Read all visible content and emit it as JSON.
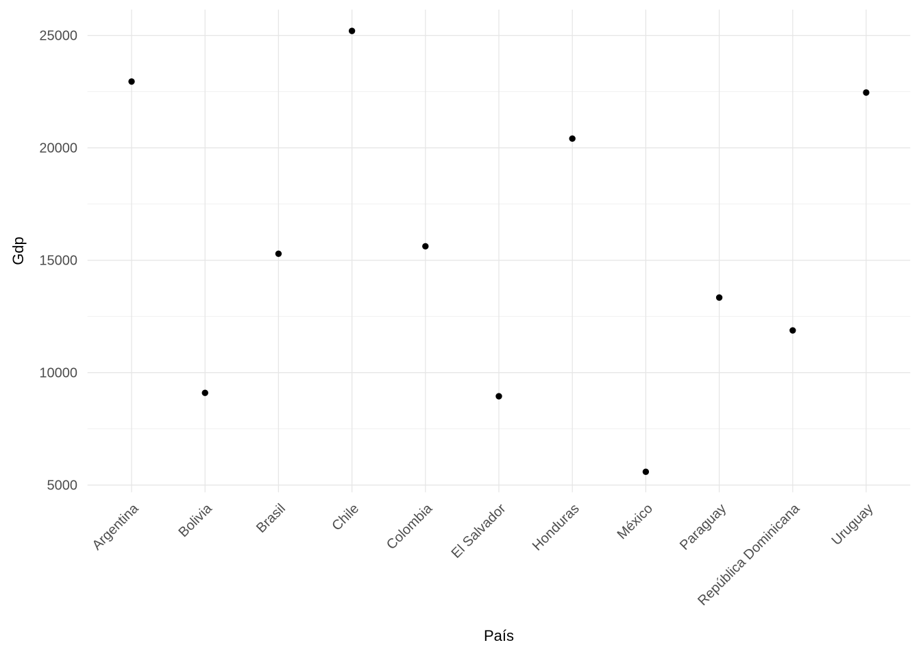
{
  "chart_data": {
    "type": "scatter",
    "title": "",
    "xlabel": "País",
    "ylabel": "Gdp",
    "categories": [
      "Argentina",
      "Bolivia",
      "Brasil",
      "Chile",
      "Colombia",
      "El Salvador",
      "Honduras",
      "México",
      "Paraguay",
      "República Dominicana",
      "Uruguay"
    ],
    "values": [
      22950,
      9100,
      15290,
      25200,
      15620,
      8950,
      20410,
      5590,
      13340,
      11880,
      22460
    ],
    "yticks": [
      5000,
      10000,
      15000,
      20000,
      25000
    ],
    "ytick_labels": [
      "5000",
      "10000",
      "15000",
      "20000",
      "25000"
    ],
    "yticks_minor": [
      7500,
      12500,
      17500,
      22500
    ],
    "ylim": [
      4676,
      26149
    ],
    "grid": "on",
    "legend": "none",
    "x_label_rotation_deg": -45,
    "colors": {
      "point": "#000000",
      "grid_major": "#e6e6e6",
      "grid_minor": "#f0f0f0",
      "tick_label": "#4d4d4d",
      "axis_title": "#000000",
      "background": "#ffffff"
    }
  }
}
